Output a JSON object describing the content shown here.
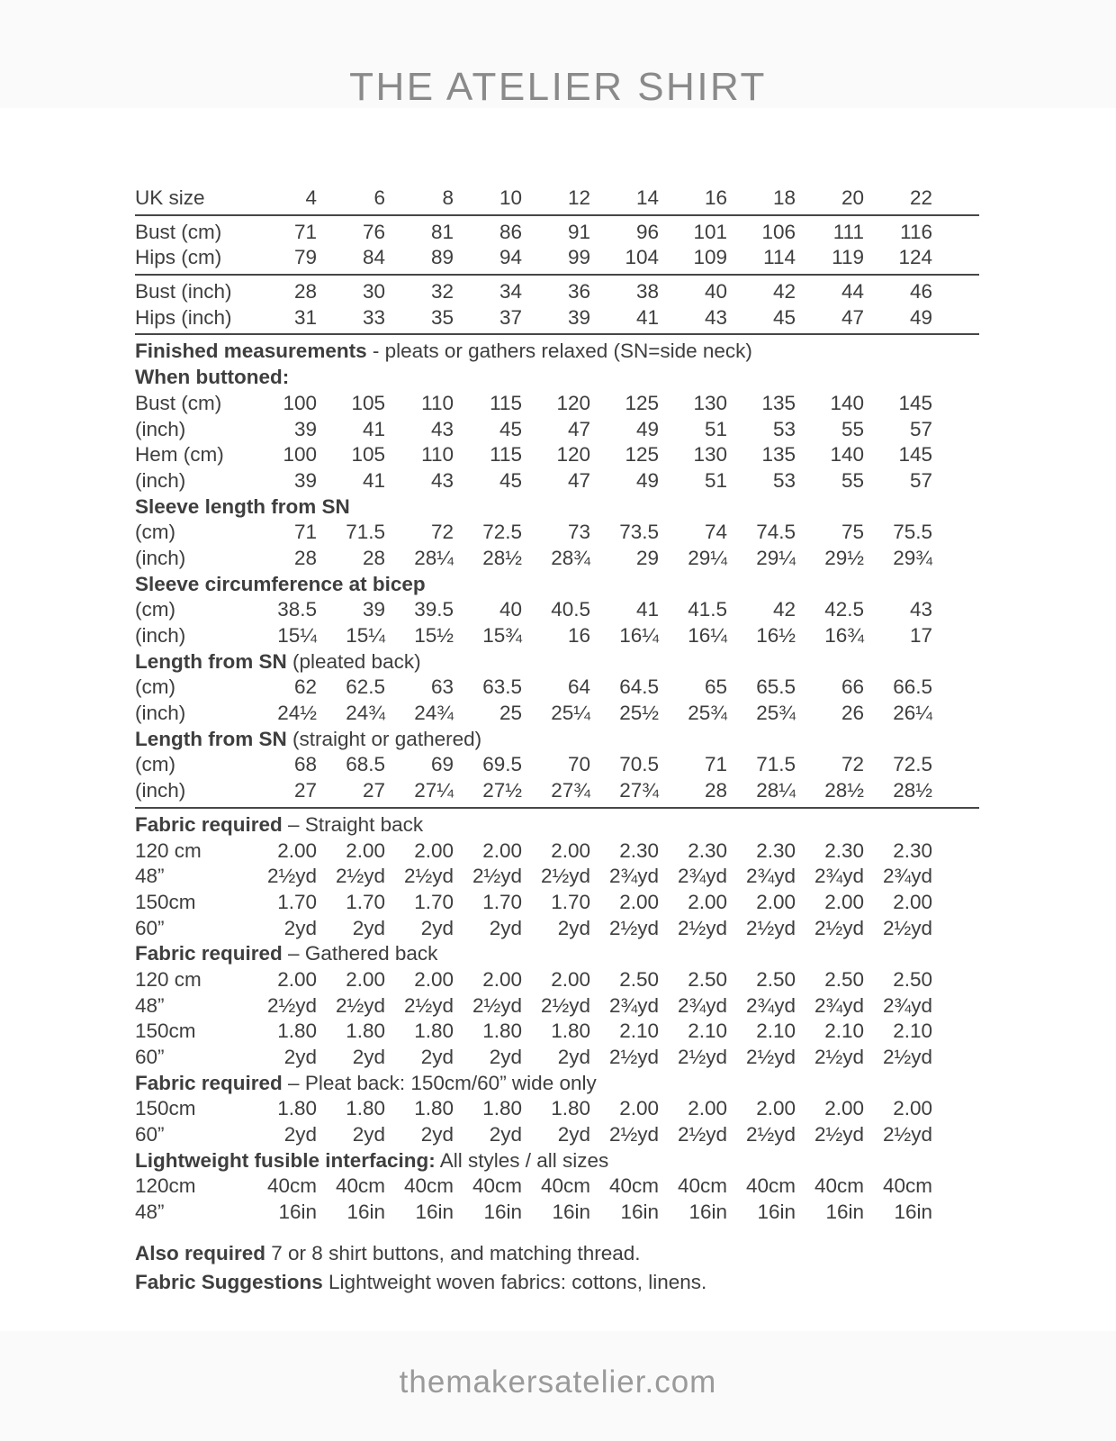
{
  "title": "THE ATELIER SHIRT",
  "footer": {
    "url": "themakersatelier.com"
  },
  "colors": {
    "title_gray": "#8a8a8a",
    "body_text": "#3e3e3e",
    "rule_line": "#474747",
    "footer_gray": "#9a9a9a",
    "band_background": "#fafafa"
  },
  "size_table": {
    "rows": [
      {
        "kind": "data",
        "label": "UK size",
        "values": [
          "4",
          "6",
          "8",
          "10",
          "12",
          "14",
          "16",
          "18",
          "20",
          "22"
        ]
      },
      {
        "kind": "rule"
      },
      {
        "kind": "data",
        "label": "Bust (cm)",
        "values": [
          "71",
          "76",
          "81",
          "86",
          "91",
          "96",
          "101",
          "106",
          "111",
          "116"
        ]
      },
      {
        "kind": "data",
        "label": "Hips (cm)",
        "values": [
          "79",
          "84",
          "89",
          "94",
          "99",
          "104",
          "109",
          "114",
          "119",
          "124"
        ]
      },
      {
        "kind": "rule"
      },
      {
        "kind": "data",
        "label": "Bust (inch)",
        "values": [
          "28",
          "30",
          "32",
          "34",
          "36",
          "38",
          "40",
          "42",
          "44",
          "46"
        ]
      },
      {
        "kind": "data",
        "label": "Hips (inch)",
        "values": [
          "31",
          "33",
          "35",
          "37",
          "39",
          "41",
          "43",
          "45",
          "47",
          "49"
        ]
      },
      {
        "kind": "rule"
      },
      {
        "kind": "header",
        "bold": "Finished measurements",
        "rest": " - pleats or gathers relaxed (SN=side neck)"
      },
      {
        "kind": "header",
        "bold": "When buttoned:",
        "rest": ""
      },
      {
        "kind": "data",
        "label": "Bust (cm)",
        "values": [
          "100",
          "105",
          "110",
          "115",
          "120",
          "125",
          "130",
          "135",
          "140",
          "145"
        ]
      },
      {
        "kind": "data",
        "label": "(inch)",
        "values": [
          "39",
          "41",
          "43",
          "45",
          "47",
          "49",
          "51",
          "53",
          "55",
          "57"
        ]
      },
      {
        "kind": "data",
        "label": "Hem (cm)",
        "values": [
          "100",
          "105",
          "110",
          "115",
          "120",
          "125",
          "130",
          "135",
          "140",
          "145"
        ]
      },
      {
        "kind": "data",
        "label": "(inch)",
        "values": [
          "39",
          "41",
          "43",
          "45",
          "47",
          "49",
          "51",
          "53",
          "55",
          "57"
        ]
      },
      {
        "kind": "header",
        "bold": "Sleeve length from SN",
        "rest": ""
      },
      {
        "kind": "data",
        "label": "(cm)",
        "values": [
          "71",
          "71.5",
          "72",
          "72.5",
          "73",
          "73.5",
          "74",
          "74.5",
          "75",
          "75.5"
        ]
      },
      {
        "kind": "data",
        "label": "(inch)",
        "values": [
          "28",
          "28",
          "28¼",
          "28½",
          "28¾",
          "29",
          "29¼",
          "29¼",
          "29½",
          "29¾"
        ]
      },
      {
        "kind": "header",
        "bold": "Sleeve circumference at bicep",
        "rest": ""
      },
      {
        "kind": "data",
        "label": "(cm)",
        "values": [
          "38.5",
          "39",
          "39.5",
          "40",
          "40.5",
          "41",
          "41.5",
          "42",
          "42.5",
          "43"
        ]
      },
      {
        "kind": "data",
        "label": "(inch)",
        "values": [
          "15¼",
          "15¼",
          "15½",
          "15¾",
          "16",
          "16¼",
          "16¼",
          "16½",
          "16¾",
          "17"
        ]
      },
      {
        "kind": "header",
        "bold": "Length from SN",
        "rest": " (pleated back)"
      },
      {
        "kind": "data",
        "label": "(cm)",
        "values": [
          "62",
          "62.5",
          "63",
          "63.5",
          "64",
          "64.5",
          "65",
          "65.5",
          "66",
          "66.5"
        ]
      },
      {
        "kind": "data",
        "label": "(inch)",
        "values": [
          "24½",
          "24¾",
          "24¾",
          "25",
          "25¼",
          "25½",
          "25¾",
          "25¾",
          "26",
          "26¼"
        ]
      },
      {
        "kind": "header",
        "bold": "Length from SN",
        "rest": " (straight or gathered)"
      },
      {
        "kind": "data",
        "label": "(cm)",
        "values": [
          "68",
          "68.5",
          "69",
          "69.5",
          "70",
          "70.5",
          "71",
          "71.5",
          "72",
          "72.5"
        ]
      },
      {
        "kind": "data",
        "label": "(inch)",
        "values": [
          "27",
          "27",
          "27¼",
          "27½",
          "27¾",
          "27¾",
          "28",
          "28¼",
          "28½",
          "28½"
        ]
      },
      {
        "kind": "rule"
      },
      {
        "kind": "header",
        "bold": "Fabric required",
        "rest": " – Straight back"
      },
      {
        "kind": "data",
        "label": "120 cm",
        "values": [
          "2.00",
          "2.00",
          "2.00",
          "2.00",
          "2.00",
          "2.30",
          "2.30",
          "2.30",
          "2.30",
          "2.30"
        ]
      },
      {
        "kind": "data",
        "label": "48”",
        "values": [
          "2½yd",
          "2½yd",
          "2½yd",
          "2½yd",
          "2½yd",
          "2¾yd",
          "2¾yd",
          "2¾yd",
          "2¾yd",
          "2¾yd"
        ]
      },
      {
        "kind": "data",
        "label": "150cm",
        "values": [
          "1.70",
          "1.70",
          "1.70",
          "1.70",
          "1.70",
          "2.00",
          "2.00",
          "2.00",
          "2.00",
          "2.00"
        ]
      },
      {
        "kind": "data",
        "label": "60”",
        "values": [
          "2yd",
          "2yd",
          "2yd",
          "2yd",
          "2yd",
          "2½yd",
          "2½yd",
          "2½yd",
          "2½yd",
          "2½yd"
        ]
      },
      {
        "kind": "header",
        "bold": "Fabric required",
        "rest": " – Gathered back"
      },
      {
        "kind": "data",
        "label": "120 cm",
        "values": [
          "2.00",
          "2.00",
          "2.00",
          "2.00",
          "2.00",
          "2.50",
          "2.50",
          "2.50",
          "2.50",
          "2.50"
        ]
      },
      {
        "kind": "data",
        "label": "48”",
        "values": [
          "2½yd",
          "2½yd",
          "2½yd",
          "2½yd",
          "2½yd",
          "2¾yd",
          "2¾yd",
          "2¾yd",
          "2¾yd",
          "2¾yd"
        ]
      },
      {
        "kind": "data",
        "label": "150cm",
        "values": [
          "1.80",
          "1.80",
          "1.80",
          "1.80",
          "1.80",
          "2.10",
          "2.10",
          "2.10",
          "2.10",
          "2.10"
        ]
      },
      {
        "kind": "data",
        "label": "60”",
        "values": [
          "2yd",
          "2yd",
          "2yd",
          "2yd",
          "2yd",
          "2½yd",
          "2½yd",
          "2½yd",
          "2½yd",
          "2½yd"
        ]
      },
      {
        "kind": "header",
        "bold": "Fabric required",
        "rest": " – Pleat back: 150cm/60” wide only"
      },
      {
        "kind": "data",
        "label": "150cm",
        "values": [
          "1.80",
          "1.80",
          "1.80",
          "1.80",
          "1.80",
          "2.00",
          "2.00",
          "2.00",
          "2.00",
          "2.00"
        ]
      },
      {
        "kind": "data",
        "label": "60”",
        "values": [
          "2yd",
          "2yd",
          "2yd",
          "2yd",
          "2yd",
          "2½yd",
          "2½yd",
          "2½yd",
          "2½yd",
          "2½yd"
        ]
      },
      {
        "kind": "header",
        "bold": "Lightweight fusible interfacing:",
        "rest": " All styles / all sizes"
      },
      {
        "kind": "data",
        "label": "120cm",
        "values": [
          "40cm",
          "40cm",
          "40cm",
          "40cm",
          "40cm",
          "40cm",
          "40cm",
          "40cm",
          "40cm",
          "40cm"
        ]
      },
      {
        "kind": "data",
        "label": "48”",
        "values": [
          "16in",
          "16in",
          "16in",
          "16in",
          "16in",
          "16in",
          "16in",
          "16in",
          "16in",
          "16in"
        ]
      }
    ]
  },
  "notes": [
    {
      "bold": "Also required",
      "rest": " 7 or 8 shirt buttons, and matching thread."
    },
    {
      "bold": "Fabric Suggestions",
      "rest": " Lightweight woven fabrics: cottons, linens."
    }
  ]
}
